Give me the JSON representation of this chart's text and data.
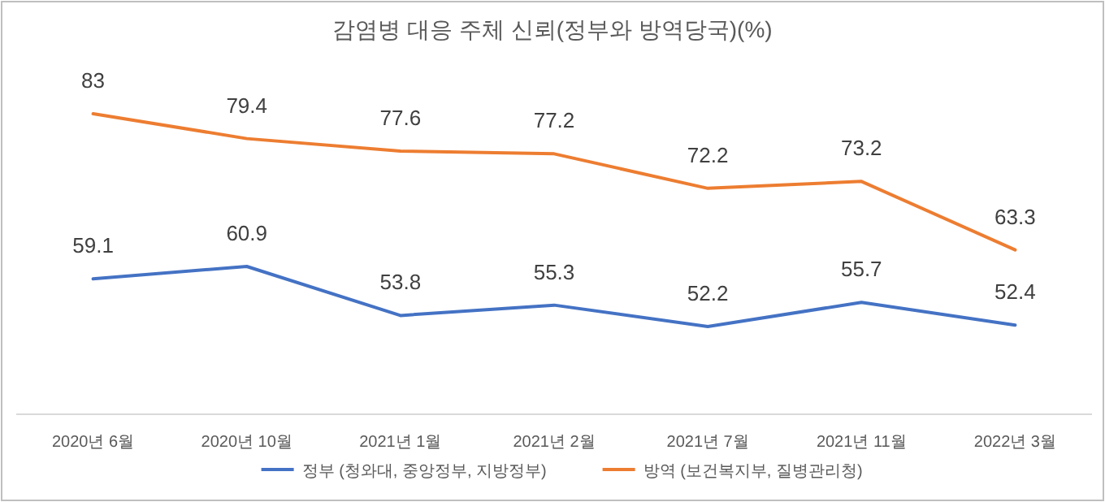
{
  "chart_data": {
    "type": "line",
    "title": "감염병 대응 주체 신뢰(정부와 방역당국)(%)",
    "categories": [
      "2020년 6월",
      "2020년 10월",
      "2021년 1월",
      "2021년 2월",
      "2021년 7월",
      "2021년 11월",
      "2022년 3월"
    ],
    "series": [
      {
        "name": "정부 (청와대, 중앙정부, 지방정부)",
        "color": "#4472c4",
        "values": [
          59.1,
          60.9,
          53.8,
          55.3,
          52.2,
          55.7,
          52.4
        ]
      },
      {
        "name": "방역 (보건복지부, 질병관리청)",
        "color": "#ed7d31",
        "values": [
          83,
          79.4,
          77.6,
          77.2,
          72.2,
          73.2,
          63.3
        ]
      }
    ],
    "data_labels": true,
    "legend": "bottom",
    "marker": "none",
    "line_style": "solid"
  }
}
